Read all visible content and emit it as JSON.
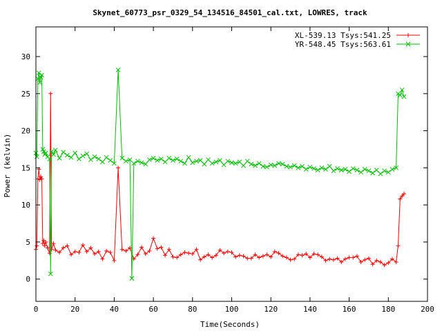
{
  "chart_data": {
    "type": "line",
    "title": "Skynet_60773_psr_0329_54_134516_84501_cal.txt, LOWRES, track",
    "xlabel": "Time(Seconds)",
    "ylabel": "Power (kelvin)",
    "xlim": [
      0,
      200
    ],
    "ylim": [
      -3,
      34
    ],
    "xticks": [
      0,
      20,
      40,
      60,
      80,
      100,
      120,
      140,
      160,
      180,
      200
    ],
    "yticks": [
      0,
      5,
      10,
      15,
      20,
      25,
      30
    ],
    "grid": false,
    "legend_position": "top-right",
    "series": [
      {
        "name": "XL-539.13 Tsys:541.25",
        "color": "#ff0000",
        "marker": "plus",
        "x": [
          0,
          0.5,
          1,
          1.5,
          2,
          2.5,
          3,
          3.5,
          4,
          4.5,
          5,
          6,
          7,
          7.5,
          8,
          9,
          10,
          12,
          14,
          16,
          18,
          20,
          22,
          24,
          26,
          28,
          30,
          32,
          34,
          36,
          38,
          40,
          42,
          44,
          46,
          48,
          50,
          52,
          54,
          56,
          58,
          60,
          62,
          64,
          66,
          68,
          70,
          72,
          74,
          76,
          78,
          80,
          82,
          84,
          86,
          88,
          90,
          92,
          94,
          96,
          98,
          100,
          102,
          104,
          106,
          108,
          110,
          112,
          114,
          116,
          118,
          120,
          122,
          124,
          126,
          128,
          130,
          132,
          134,
          136,
          138,
          140,
          142,
          144,
          146,
          148,
          150,
          152,
          154,
          156,
          158,
          160,
          162,
          164,
          166,
          168,
          170,
          172,
          174,
          176,
          178,
          180,
          182,
          184,
          185,
          186,
          187,
          188
        ],
        "values": [
          4.0,
          4.5,
          13.5,
          14.8,
          13.4,
          13.8,
          13.5,
          4.8,
          5.2,
          4.5,
          5.0,
          4.2,
          3.5,
          25.0,
          4.0,
          4.8,
          3.9,
          3.6,
          4.2,
          4.5,
          3.3,
          3.7,
          3.6,
          4.6,
          3.7,
          4.2,
          3.4,
          3.7,
          2.7,
          3.8,
          3.6,
          2.5,
          15.0,
          4.0,
          3.8,
          4.2,
          2.7,
          3.3,
          4.3,
          3.4,
          3.8,
          5.5,
          4.1,
          4.3,
          3.2,
          4.0,
          3.0,
          2.9,
          3.3,
          3.6,
          3.5,
          3.4,
          4.0,
          2.6,
          3.0,
          3.3,
          2.9,
          3.2,
          3.9,
          3.5,
          3.7,
          3.6,
          3.0,
          3.2,
          3.1,
          2.8,
          2.8,
          3.3,
          2.9,
          3.1,
          3.3,
          3.0,
          3.7,
          3.5,
          3.1,
          2.9,
          2.6,
          2.7,
          3.3,
          3.2,
          3.4,
          2.9,
          3.4,
          3.3,
          3.0,
          2.5,
          2.7,
          2.6,
          2.8,
          2.3,
          2.7,
          2.9,
          2.9,
          3.1,
          2.3,
          2.6,
          2.8,
          2.0,
          2.5,
          2.3,
          1.9,
          2.2,
          2.7,
          2.3,
          4.5,
          10.8,
          11.2,
          11.5
        ]
      },
      {
        "name": "YR-548.45 Tsys:563.61",
        "color": "#00c000",
        "marker": "cross",
        "x": [
          0,
          0.5,
          1,
          1.5,
          2,
          2.5,
          3,
          3.5,
          4,
          4.5,
          5,
          6,
          7,
          7.5,
          8,
          9,
          10,
          12,
          14,
          16,
          18,
          20,
          22,
          24,
          26,
          28,
          30,
          32,
          34,
          36,
          38,
          40,
          42,
          44,
          46,
          48,
          49,
          50,
          52,
          54,
          56,
          58,
          60,
          62,
          64,
          66,
          68,
          70,
          72,
          74,
          76,
          78,
          80,
          82,
          84,
          86,
          88,
          90,
          92,
          94,
          96,
          98,
          100,
          102,
          104,
          106,
          108,
          110,
          112,
          114,
          116,
          118,
          120,
          122,
          124,
          126,
          128,
          130,
          132,
          134,
          136,
          138,
          140,
          142,
          144,
          146,
          148,
          150,
          152,
          154,
          156,
          158,
          160,
          162,
          164,
          166,
          168,
          170,
          172,
          174,
          176,
          178,
          180,
          182,
          184,
          185,
          186,
          187,
          188
        ],
        "values": [
          17.0,
          16.5,
          27.0,
          27.8,
          26.5,
          27.2,
          27.5,
          17.5,
          17.2,
          16.8,
          17.0,
          16.5,
          16.2,
          0.7,
          17.2,
          16.8,
          17.4,
          16.3,
          17.1,
          16.7,
          16.4,
          17.0,
          16.2,
          16.6,
          16.9,
          16.1,
          16.5,
          16.2,
          15.8,
          16.4,
          16.0,
          15.6,
          28.2,
          16.3,
          15.9,
          16.1,
          0.1,
          15.6,
          15.9,
          15.7,
          15.5,
          16.1,
          16.3,
          16.0,
          16.2,
          15.8,
          16.3,
          16.0,
          16.2,
          15.9,
          15.6,
          16.4,
          15.7,
          15.9,
          16.0,
          15.5,
          16.1,
          15.6,
          15.8,
          16.0,
          15.4,
          15.9,
          15.7,
          15.6,
          15.8,
          15.3,
          15.9,
          15.5,
          15.3,
          15.6,
          15.2,
          15.1,
          15.4,
          15.3,
          15.6,
          15.5,
          15.2,
          15.1,
          15.3,
          15.0,
          15.2,
          14.8,
          15.1,
          14.9,
          14.7,
          15.0,
          14.8,
          15.2,
          14.6,
          14.9,
          14.7,
          14.8,
          14.5,
          14.9,
          14.7,
          14.4,
          14.8,
          14.6,
          14.3,
          14.7,
          14.2,
          14.6,
          14.4,
          14.8,
          15.0,
          25.0,
          24.8,
          25.5,
          24.6
        ]
      }
    ]
  }
}
